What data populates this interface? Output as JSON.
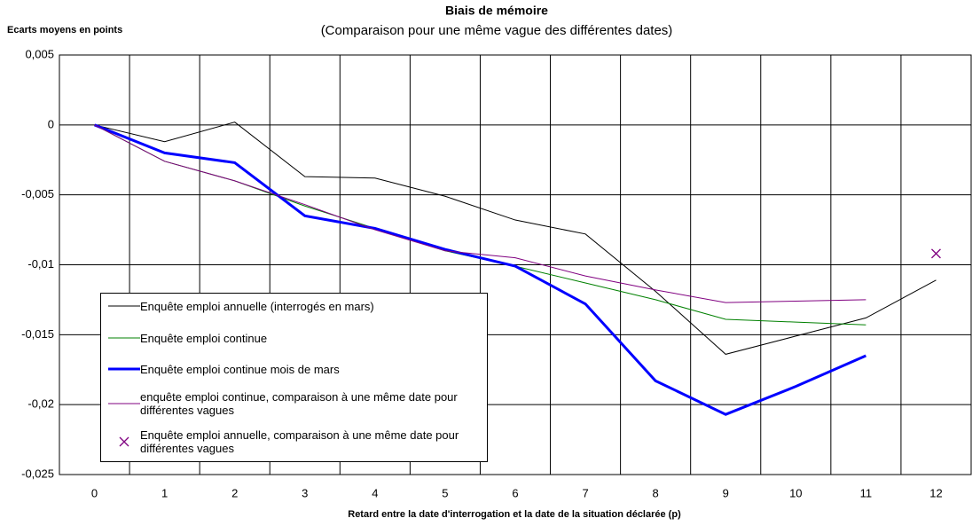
{
  "chart_data": {
    "type": "line",
    "title": "Biais de mémoire",
    "subtitle": "(Comparaison pour une même vague des différentes dates)",
    "y_label": "Ecarts moyens en points",
    "x_label": "Retard entre la date d'interrogation et la date de la situation déclarée (p)",
    "categories": [
      "0",
      "1",
      "2",
      "3",
      "4",
      "5",
      "6",
      "7",
      "8",
      "9",
      "10",
      "11",
      "12"
    ],
    "ylim": [
      -0.025,
      0.005
    ],
    "yticks": [
      {
        "value": 0.005,
        "label": "0,005"
      },
      0,
      {
        "value": -0.005,
        "label": "-0,005"
      },
      {
        "value": -0.01,
        "label": "-0,01"
      },
      {
        "value": -0.015,
        "label": "-0,015"
      },
      {
        "value": -0.02,
        "label": "-0,02"
      },
      {
        "value": -0.025,
        "label": "-0,025"
      }
    ],
    "grid": true,
    "series": [
      {
        "name": "Enquête emploi annuelle (interrogés en mars)",
        "color": "#000000",
        "line_width": 1,
        "values": [
          0,
          -0.0012,
          0.0002,
          -0.0037,
          -0.0038,
          -0.0051,
          -0.0068,
          -0.0078,
          -0.0119,
          -0.0164,
          -0.0151,
          -0.0138,
          -0.0111
        ]
      },
      {
        "name": "Enquête emploi continue",
        "color": "#008000",
        "line_width": 1,
        "values": [
          0,
          -0.0026,
          -0.004,
          -0.0058,
          -0.0074,
          -0.009,
          -0.0101,
          -0.0113,
          -0.0125,
          -0.0139,
          -0.0141,
          -0.0143,
          null
        ]
      },
      {
        "name": "Enquête emploi continue mois de mars",
        "color": "#0000ff",
        "line_width": 3,
        "values": [
          0,
          -0.002,
          -0.0027,
          -0.0065,
          -0.0074,
          -0.0089,
          -0.0101,
          -0.0128,
          -0.0183,
          -0.0207,
          -0.0187,
          -0.0165,
          null
        ]
      },
      {
        "name": "enquête emploi continue, comparaison à une même date pour différentes vagues",
        "color": "#800080",
        "line_width": 1,
        "values": [
          0,
          -0.0026,
          -0.004,
          -0.0057,
          -0.0075,
          -0.009,
          -0.0095,
          -0.0108,
          -0.0118,
          -0.0127,
          -0.0126,
          -0.0125,
          null
        ]
      },
      {
        "name": "Enquête emploi annuelle, comparaison à une même date pour différentes vagues",
        "color": "#800080",
        "marker": "x",
        "values": [
          null,
          null,
          null,
          null,
          null,
          null,
          null,
          null,
          null,
          null,
          null,
          null,
          -0.0092
        ]
      }
    ]
  }
}
